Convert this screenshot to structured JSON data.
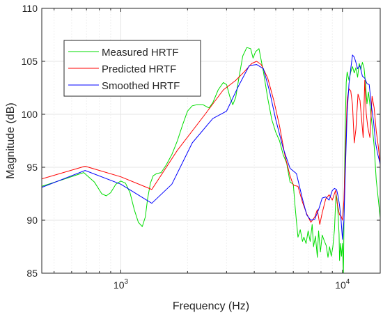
{
  "chart_data": {
    "type": "line",
    "title": "",
    "xlabel": "Frequency (Hz)",
    "ylabel": "Magnitude (dB)",
    "xscale": "log",
    "xlim": [
      440,
      14800
    ],
    "ylim": [
      85,
      110
    ],
    "yticks": [
      85,
      90,
      95,
      100,
      105,
      110
    ],
    "xticks": [
      {
        "value": 1000,
        "base": "10",
        "exp": "3"
      },
      {
        "value": 10000,
        "base": "10",
        "exp": "4"
      }
    ],
    "grid": true,
    "legend": {
      "position": "top-left"
    },
    "series": [
      {
        "name": "Measured HRTF",
        "color": "#00dd00",
        "x": [
          440,
          560,
          680,
          760,
          820,
          860,
          900,
          950,
          1000,
          1050,
          1100,
          1150,
          1200,
          1250,
          1290,
          1320,
          1360,
          1400,
          1450,
          1520,
          1600,
          1700,
          1800,
          1900,
          2000,
          2100,
          2200,
          2350,
          2500,
          2600,
          2750,
          2900,
          3000,
          3100,
          3200,
          3300,
          3400,
          3550,
          3700,
          3850,
          3950,
          4050,
          4200,
          4400,
          4600,
          4800,
          5000,
          5200,
          5400,
          5600,
          5800,
          6000,
          6100,
          6200,
          6300,
          6450,
          6600,
          6700,
          6850,
          7000,
          7150,
          7300,
          7400,
          7550,
          7700,
          7800,
          7950,
          8100,
          8300,
          8450,
          8600,
          8750,
          8900,
          9050,
          9200,
          9350,
          9450,
          9550,
          9650,
          9700,
          9800,
          9900,
          10000,
          10100,
          10200,
          10300,
          10400,
          10500,
          10700,
          10900,
          11100,
          11300,
          11500,
          11700,
          11900,
          12100,
          12300,
          12500,
          12700,
          12900,
          13100,
          13300,
          13600,
          13900,
          14200,
          14500,
          14800
        ],
        "y": [
          93.2,
          93.9,
          94.5,
          93.6,
          92.5,
          92.3,
          92.6,
          93.4,
          93.7,
          93.5,
          92.6,
          91.0,
          89.8,
          89.4,
          90.3,
          92.0,
          93.5,
          94.2,
          94.4,
          94.5,
          95.2,
          96.2,
          97.5,
          99.0,
          100.3,
          100.8,
          100.9,
          100.9,
          100.6,
          101.1,
          102.3,
          103.0,
          102.8,
          101.7,
          100.9,
          101.6,
          103.3,
          105.5,
          106.3,
          106.2,
          105.3,
          105.9,
          106.2,
          104.0,
          101.5,
          99.5,
          98.3,
          97.5,
          96.2,
          95.4,
          93.6,
          93.4,
          91.5,
          89.9,
          88.4,
          89.1,
          88.0,
          88.4,
          87.8,
          89.0,
          88.0,
          89.6,
          87.5,
          88.5,
          86.5,
          89.0,
          87.0,
          88.6,
          88.0,
          87.6,
          86.5,
          87.5,
          86.6,
          87.5,
          89.1,
          92.5,
          92.0,
          90.6,
          88.7,
          86.2,
          87.8,
          86.6,
          87.8,
          85.0,
          93.3,
          99.3,
          103.0,
          104.0,
          103.2,
          104.0,
          104.5,
          103.9,
          104.4,
          103.5,
          104.8,
          104.2,
          104.9,
          104.4,
          103.0,
          101.0,
          102.1,
          100.9,
          99.0,
          97.0,
          93.8,
          92.0,
          90.2
        ]
      },
      {
        "name": "Predicted HRTF",
        "color": "#ff0000",
        "x": [
          440,
          690,
          1000,
          1380,
          1800,
          2400,
          2900,
          3300,
          3600,
          3900,
          4100,
          4300,
          4600,
          4900,
          5200,
          5500,
          5800,
          6000,
          6300,
          6600,
          6900,
          7200,
          7500,
          7700,
          7900,
          8100,
          8400,
          8700,
          9000,
          9300,
          9500,
          9700,
          9850,
          10000,
          10150,
          10300,
          10500,
          10700,
          10900,
          11100,
          11300,
          11500,
          11750,
          12000,
          12200,
          12400,
          12600,
          12800,
          13000,
          13300,
          13600,
          13900,
          14200,
          14500,
          14800
        ],
        "y": [
          93.9,
          95.1,
          94.1,
          92.9,
          96.6,
          100.0,
          102.3,
          103.2,
          104.0,
          104.8,
          105.0,
          104.7,
          103.4,
          101.3,
          98.9,
          96.1,
          94.2,
          93.3,
          93.2,
          91.7,
          90.6,
          89.8,
          90.3,
          91.0,
          89.6,
          90.7,
          92.0,
          92.4,
          91.9,
          92.8,
          91.4,
          90.5,
          90.4,
          90.0,
          91.9,
          96.0,
          101.4,
          102.4,
          102.2,
          100.9,
          97.3,
          98.6,
          101.9,
          101.3,
          99.5,
          97.8,
          103.2,
          100.1,
          98.8,
          97.8,
          101.7,
          100.6,
          98.4,
          97.0,
          95.2
        ]
      },
      {
        "name": "Smoothed HRTF",
        "color": "#0000ff",
        "x": [
          440,
          690,
          1000,
          1380,
          1700,
          2100,
          2600,
          3000,
          3400,
          3800,
          4100,
          4400,
          4700,
          5000,
          5400,
          5800,
          6200,
          6600,
          6900,
          7200,
          7500,
          7800,
          8100,
          8400,
          8700,
          9000,
          9200,
          9400,
          9550,
          9700,
          9850,
          10000,
          10150,
          10300,
          10500,
          10700,
          10900,
          11100,
          11300,
          11500,
          11700,
          12000,
          12300,
          12600,
          12900,
          13200,
          13500,
          13800,
          14100,
          14400,
          14800
        ],
        "y": [
          93.1,
          94.7,
          93.4,
          91.6,
          93.4,
          97.3,
          99.6,
          100.3,
          102.7,
          104.6,
          104.7,
          104.3,
          102.1,
          99.5,
          96.8,
          94.9,
          94.4,
          92.0,
          90.5,
          90.0,
          90.1,
          91.0,
          92.1,
          92.2,
          91.9,
          92.8,
          93.0,
          92.9,
          92.3,
          91.4,
          90.1,
          88.2,
          90.0,
          94.6,
          100.1,
          102.9,
          104.3,
          105.6,
          105.4,
          104.9,
          104.3,
          104.6,
          103.6,
          103.4,
          102.9,
          102.8,
          100.8,
          99.4,
          97.3,
          96.3,
          95.3
        ]
      }
    ]
  }
}
